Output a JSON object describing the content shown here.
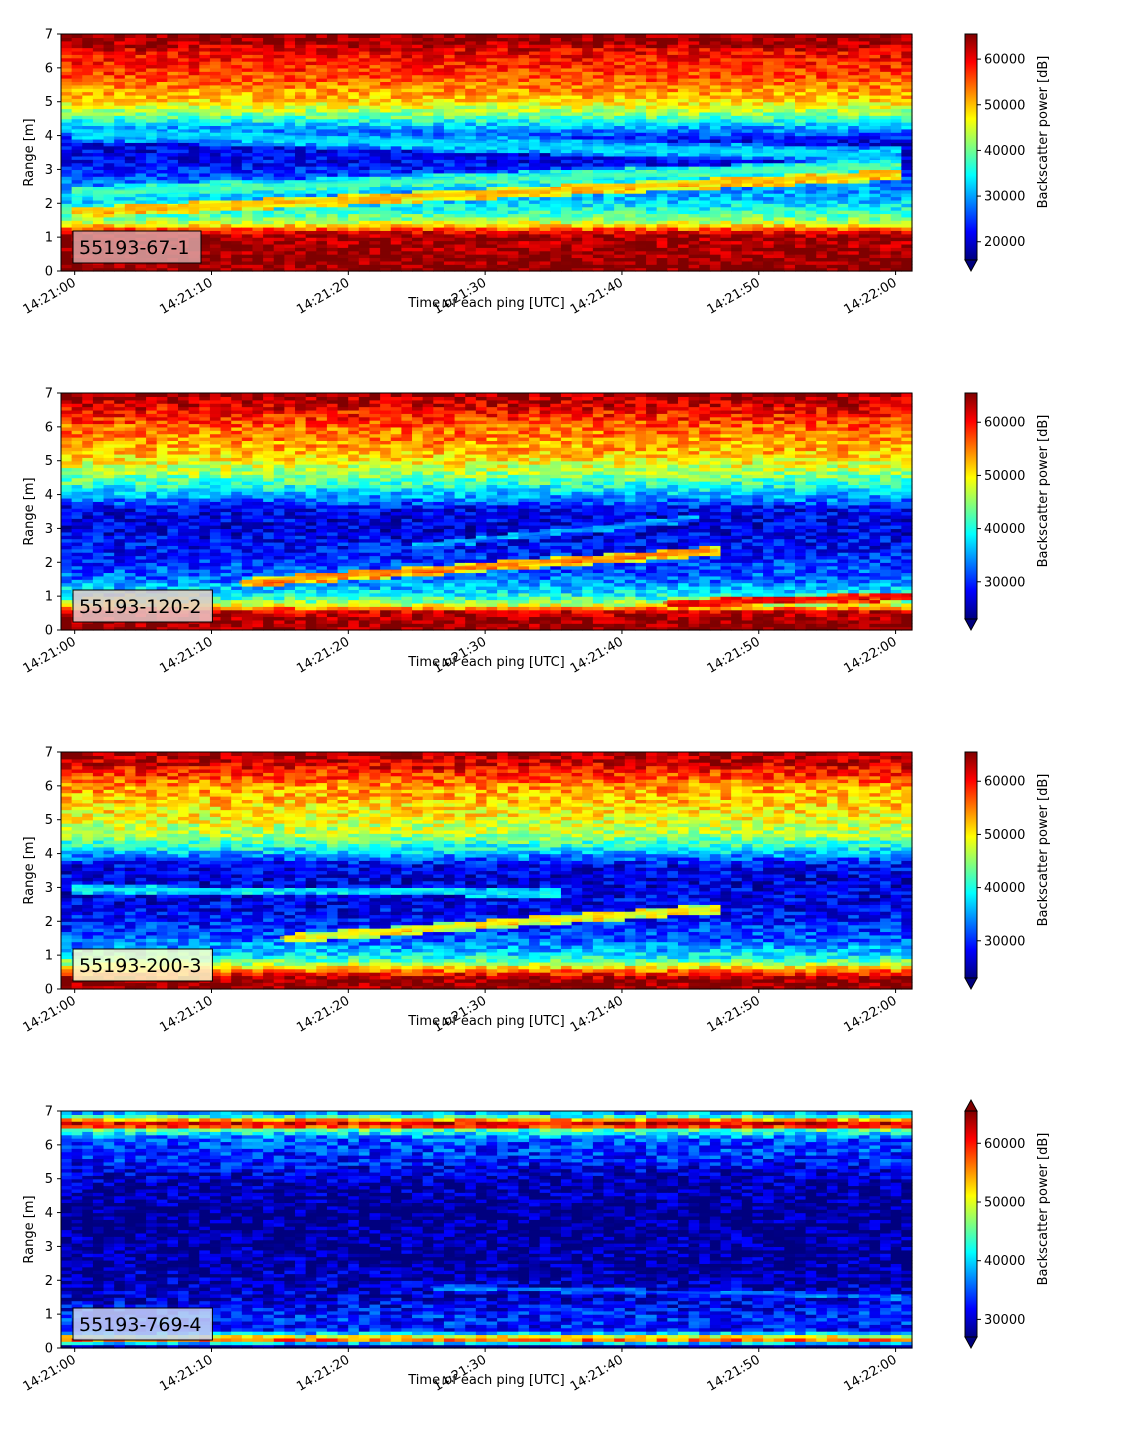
{
  "colormap": {
    "name": "jet",
    "stops": [
      "#00007f",
      "#0000ff",
      "#007fff",
      "#00ffff",
      "#7fff7f",
      "#ffff00",
      "#ff7f00",
      "#ff0000",
      "#7f0000"
    ]
  },
  "chart_data": [
    {
      "type": "heatmap",
      "label": "55193-67-1",
      "label_box_color": "#d9a3a3",
      "xlabel": "Time of each ping [UTC]",
      "ylabel": "Range [m]",
      "colorbar_label": "Backscatter power [dB]",
      "x_ticks": [
        "14:21:00",
        "14:21:10",
        "14:21:20",
        "14:21:30",
        "14:21:40",
        "14:21:50",
        "14:22:00"
      ],
      "y_ticks": [
        0,
        1,
        2,
        3,
        4,
        5,
        6,
        7
      ],
      "ylim": [
        0,
        7
      ],
      "x_range_seconds": [
        -1,
        61.2
      ],
      "colorbar_ticks": [
        20000,
        30000,
        40000,
        50000,
        60000
      ],
      "clim": [
        16000,
        65500
      ],
      "colorbar_extend": "min",
      "profile": [
        [
          0,
          65000
        ],
        [
          0.25,
          65000
        ],
        [
          1.1,
          63000
        ],
        [
          1.3,
          52000
        ],
        [
          1.5,
          42000
        ],
        [
          1.8,
          36000
        ],
        [
          2.1,
          32000
        ],
        [
          2.6,
          28000
        ],
        [
          3.2,
          22000
        ],
        [
          3.8,
          21000
        ],
        [
          4.2,
          29000
        ],
        [
          4.6,
          40000
        ],
        [
          5.1,
          50000
        ],
        [
          5.8,
          56000
        ],
        [
          6.5,
          60000
        ],
        [
          6.8,
          64000
        ],
        [
          7,
          65000
        ]
      ],
      "bands": [
        {
          "x": [
            0,
            60
          ],
          "y": [
            2.3,
            3.1
          ],
          "width": 0.22,
          "value": 38000
        },
        {
          "x": [
            0,
            60
          ],
          "y": [
            1.75,
            2.85
          ],
          "width": 0.16,
          "value": 50000
        },
        {
          "x": [
            0,
            60
          ],
          "y": [
            4.1,
            3.4
          ],
          "width": 0.25,
          "value": 33000
        }
      ]
    },
    {
      "type": "heatmap",
      "label": "55193-120-2",
      "label_box_color": "#e8c9c9",
      "xlabel": "Time of each ping [UTC]",
      "ylabel": "Range [m]",
      "colorbar_label": "Backscatter power [dB]",
      "x_ticks": [
        "14:21:00",
        "14:21:10",
        "14:21:20",
        "14:21:30",
        "14:21:40",
        "14:21:50",
        "14:22:00"
      ],
      "y_ticks": [
        0,
        1,
        2,
        3,
        4,
        5,
        6,
        7
      ],
      "ylim": [
        0,
        7
      ],
      "x_range_seconds": [
        -1,
        61.2
      ],
      "colorbar_ticks": [
        30000,
        40000,
        50000,
        60000
      ],
      "clim": [
        23000,
        65500
      ],
      "colorbar_extend": "min",
      "profile": [
        [
          0,
          65000
        ],
        [
          0.3,
          65000
        ],
        [
          0.55,
          62000
        ],
        [
          0.75,
          48000
        ],
        [
          1.0,
          40000
        ],
        [
          1.5,
          33000
        ],
        [
          2.3,
          29000
        ],
        [
          3.0,
          27000
        ],
        [
          3.6,
          28000
        ],
        [
          4.0,
          36000
        ],
        [
          4.6,
          45000
        ],
        [
          5.2,
          52000
        ],
        [
          6.0,
          56000
        ],
        [
          6.7,
          62000
        ],
        [
          7,
          65000
        ]
      ],
      "bands": [
        {
          "x": [
            12,
            47
          ],
          "y": [
            1.4,
            2.35
          ],
          "width": 0.14,
          "value": 54000
        },
        {
          "x": [
            43,
            61
          ],
          "y": [
            0.8,
            1.0
          ],
          "width": 0.12,
          "value": 60000
        },
        {
          "x": [
            25,
            45
          ],
          "y": [
            2.5,
            3.3
          ],
          "width": 0.1,
          "value": 35000
        }
      ]
    },
    {
      "type": "heatmap",
      "label": "55193-200-3",
      "label_box_color": "#ffffcc",
      "xlabel": "Time of each ping [UTC]",
      "ylabel": "Range [m]",
      "colorbar_label": "Backscatter power [dB]",
      "x_ticks": [
        "14:21:00",
        "14:21:10",
        "14:21:20",
        "14:21:30",
        "14:21:40",
        "14:21:50",
        "14:22:00"
      ],
      "y_ticks": [
        0,
        1,
        2,
        3,
        4,
        5,
        6,
        7
      ],
      "ylim": [
        0,
        7
      ],
      "x_range_seconds": [
        -1,
        61.2
      ],
      "colorbar_ticks": [
        30000,
        40000,
        50000,
        60000
      ],
      "clim": [
        23000,
        65500
      ],
      "colorbar_extend": "min",
      "profile": [
        [
          0,
          65000
        ],
        [
          0.3,
          65000
        ],
        [
          0.5,
          58000
        ],
        [
          0.75,
          46000
        ],
        [
          1.0,
          38000
        ],
        [
          1.5,
          32000
        ],
        [
          2.3,
          28000
        ],
        [
          3.0,
          27000
        ],
        [
          3.7,
          28000
        ],
        [
          4.1,
          38000
        ],
        [
          4.6,
          46000
        ],
        [
          5.2,
          50000
        ],
        [
          6.0,
          54000
        ],
        [
          6.7,
          62000
        ],
        [
          7,
          65000
        ]
      ],
      "bands": [
        {
          "x": [
            15,
            47
          ],
          "y": [
            1.5,
            2.4
          ],
          "width": 0.14,
          "value": 50000
        },
        {
          "x": [
            0,
            35
          ],
          "y": [
            2.95,
            2.85
          ],
          "width": 0.12,
          "value": 38000
        }
      ]
    },
    {
      "type": "heatmap",
      "label": "55193-769-4",
      "label_box_color": "#c9d3f5",
      "xlabel": "Time of each ping [UTC]",
      "ylabel": "Range [m]",
      "colorbar_label": "Backscatter power [dB]",
      "x_ticks": [
        "14:21:00",
        "14:21:10",
        "14:21:20",
        "14:21:30",
        "14:21:40",
        "14:21:50",
        "14:22:00"
      ],
      "y_ticks": [
        0,
        1,
        2,
        3,
        4,
        5,
        6,
        7
      ],
      "ylim": [
        0,
        7
      ],
      "x_range_seconds": [
        -1,
        61.2
      ],
      "colorbar_ticks": [
        30000,
        40000,
        50000,
        60000
      ],
      "clim": [
        27000,
        65500
      ],
      "colorbar_extend": "both",
      "profile": [
        [
          0,
          27000
        ],
        [
          0.12,
          27000
        ],
        [
          0.2,
          60000
        ],
        [
          0.35,
          50000
        ],
        [
          0.5,
          33000
        ],
        [
          1.0,
          33000
        ],
        [
          1.5,
          30000
        ],
        [
          2.5,
          28000
        ],
        [
          4.0,
          27500
        ],
        [
          5.0,
          29000
        ],
        [
          5.6,
          33000
        ],
        [
          6.2,
          35000
        ],
        [
          6.45,
          45000
        ],
        [
          6.6,
          65000
        ],
        [
          6.75,
          55000
        ],
        [
          6.9,
          38000
        ],
        [
          7,
          38000
        ]
      ],
      "bands": [
        {
          "x": [
            26,
            61
          ],
          "y": [
            1.8,
            1.5
          ],
          "width": 0.08,
          "value": 36000
        }
      ]
    }
  ]
}
